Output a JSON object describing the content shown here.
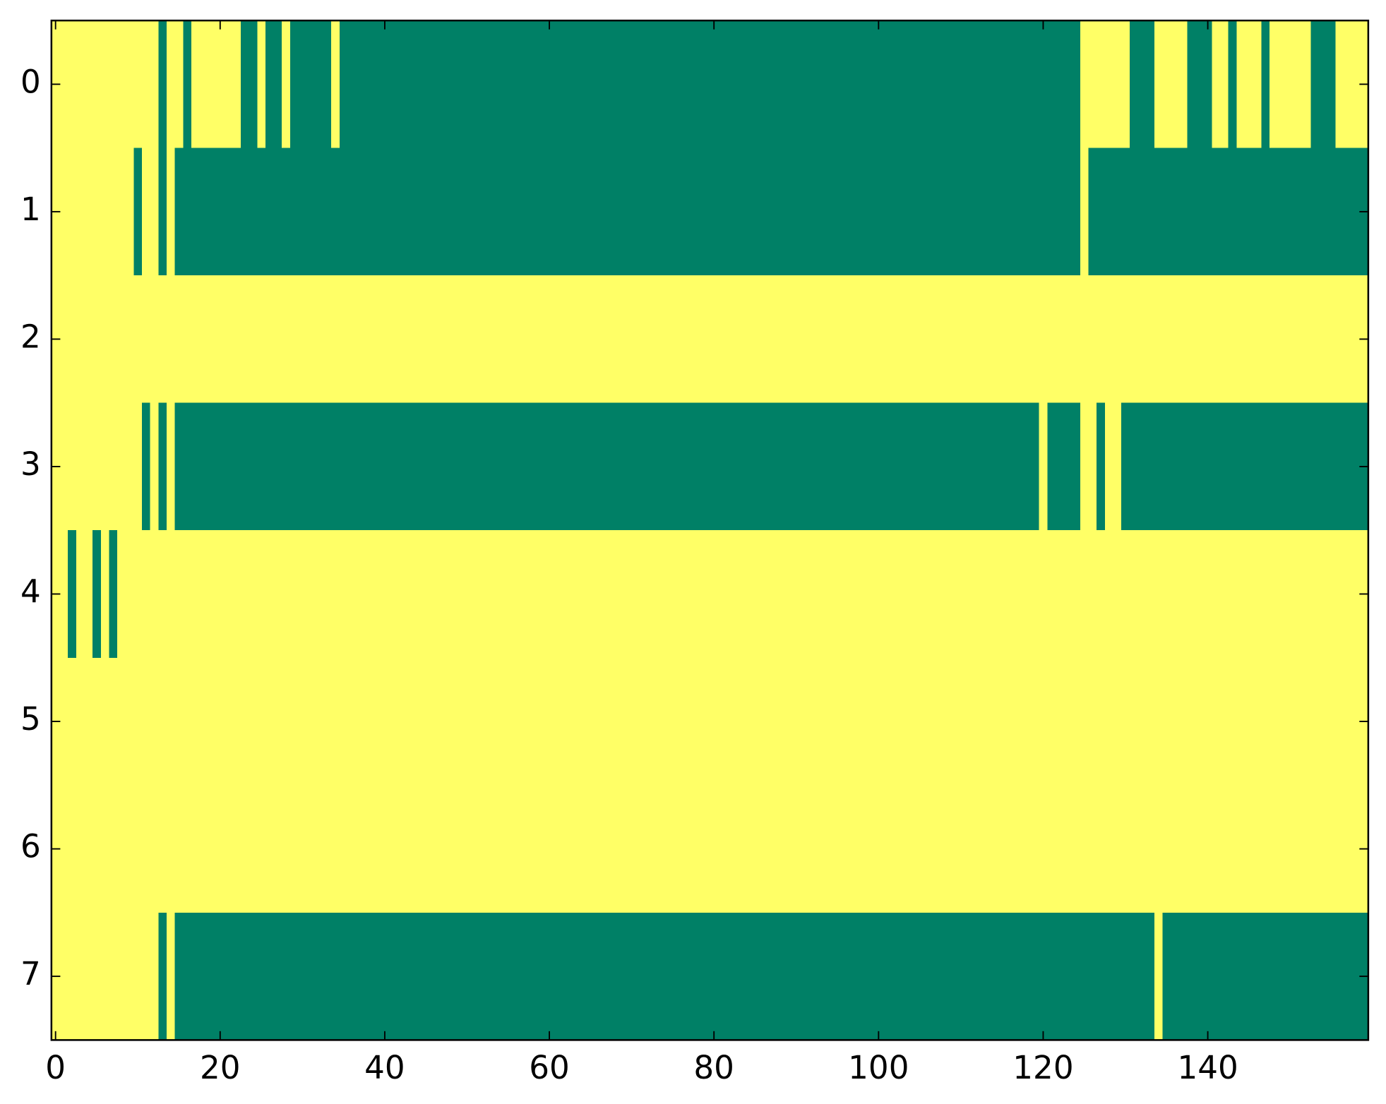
{
  "chart_data": {
    "type": "heatmap",
    "colors": [
      "#008066",
      "#ffff66"
    ],
    "xlim": [
      -0.5,
      159.5
    ],
    "ylim": [
      7.5,
      -0.5
    ],
    "xticks": [
      0,
      20,
      40,
      60,
      80,
      100,
      120,
      140
    ],
    "yticks": [
      0,
      1,
      2,
      3,
      4,
      5,
      6,
      7
    ],
    "values": [
      [
        1,
        1,
        1,
        1,
        1,
        1,
        1,
        1,
        1,
        1,
        1,
        1,
        1,
        0,
        1,
        1,
        0,
        1,
        1,
        1,
        1,
        1,
        1,
        0,
        0,
        1,
        0,
        0,
        1,
        0,
        0,
        0,
        0,
        0,
        1,
        0,
        0,
        0,
        0,
        0,
        0,
        0,
        0,
        0,
        0,
        0,
        0,
        0,
        0,
        0,
        0,
        0,
        0,
        0,
        0,
        0,
        0,
        0,
        0,
        0,
        0,
        0,
        0,
        0,
        0,
        0,
        0,
        0,
        0,
        0,
        0,
        0,
        0,
        0,
        0,
        0,
        0,
        0,
        0,
        0,
        0,
        0,
        0,
        0,
        0,
        0,
        0,
        0,
        0,
        0,
        0,
        0,
        0,
        0,
        0,
        0,
        0,
        0,
        0,
        0,
        0,
        0,
        0,
        0,
        0,
        0,
        0,
        0,
        0,
        0,
        0,
        0,
        0,
        0,
        0,
        0,
        0,
        0,
        0,
        0,
        0,
        0,
        0,
        0,
        0,
        1,
        1,
        1,
        1,
        1,
        1,
        0,
        0,
        0,
        1,
        1,
        1,
        1,
        0,
        0,
        0,
        1,
        1,
        0,
        1,
        1,
        1,
        0,
        1,
        1,
        1,
        1,
        1,
        0,
        0,
        0,
        1,
        1,
        1,
        1
      ],
      [
        1,
        1,
        1,
        1,
        1,
        1,
        1,
        1,
        1,
        1,
        0,
        1,
        1,
        0,
        1,
        0,
        0,
        0,
        0,
        0,
        0,
        0,
        0,
        0,
        0,
        0,
        0,
        0,
        0,
        0,
        0,
        0,
        0,
        0,
        0,
        0,
        0,
        0,
        0,
        0,
        0,
        0,
        0,
        0,
        0,
        0,
        0,
        0,
        0,
        0,
        0,
        0,
        0,
        0,
        0,
        0,
        0,
        0,
        0,
        0,
        0,
        0,
        0,
        0,
        0,
        0,
        0,
        0,
        0,
        0,
        0,
        0,
        0,
        0,
        0,
        0,
        0,
        0,
        0,
        0,
        0,
        0,
        0,
        0,
        0,
        0,
        0,
        0,
        0,
        0,
        0,
        0,
        0,
        0,
        0,
        0,
        0,
        0,
        0,
        0,
        0,
        0,
        0,
        0,
        0,
        0,
        0,
        0,
        0,
        0,
        0,
        0,
        0,
        0,
        0,
        0,
        0,
        0,
        0,
        0,
        0,
        0,
        0,
        0,
        0,
        1,
        0,
        0,
        0,
        0,
        0,
        0,
        0,
        0,
        0,
        0,
        0,
        0,
        0,
        0,
        0,
        0,
        0,
        0,
        0,
        0,
        0,
        0,
        0,
        0,
        0,
        0,
        0,
        0,
        0,
        0,
        0,
        0,
        0,
        0
      ],
      [
        1,
        1,
        1,
        1,
        1,
        1,
        1,
        1,
        1,
        1,
        1,
        1,
        1,
        1,
        1,
        1,
        1,
        1,
        1,
        1,
        1,
        1,
        1,
        1,
        1,
        1,
        1,
        1,
        1,
        1,
        1,
        1,
        1,
        1,
        1,
        1,
        1,
        1,
        1,
        1,
        1,
        1,
        1,
        1,
        1,
        1,
        1,
        1,
        1,
        1,
        1,
        1,
        1,
        1,
        1,
        1,
        1,
        1,
        1,
        1,
        1,
        1,
        1,
        1,
        1,
        1,
        1,
        1,
        1,
        1,
        1,
        1,
        1,
        1,
        1,
        1,
        1,
        1,
        1,
        1,
        1,
        1,
        1,
        1,
        1,
        1,
        1,
        1,
        1,
        1,
        1,
        1,
        1,
        1,
        1,
        1,
        1,
        1,
        1,
        1,
        1,
        1,
        1,
        1,
        1,
        1,
        1,
        1,
        1,
        1,
        1,
        1,
        1,
        1,
        1,
        1,
        1,
        1,
        1,
        1,
        1,
        1,
        1,
        1,
        1,
        1,
        1,
        1,
        1,
        1,
        1,
        1,
        1,
        1,
        1,
        1,
        1,
        1,
        1,
        1,
        1,
        1,
        1,
        1,
        1,
        1,
        1,
        1,
        1,
        1,
        1,
        1,
        1,
        1,
        1,
        1,
        1,
        1,
        1,
        1
      ],
      [
        1,
        1,
        1,
        1,
        1,
        1,
        1,
        1,
        1,
        1,
        1,
        0,
        1,
        0,
        1,
        0,
        0,
        0,
        0,
        0,
        0,
        0,
        0,
        0,
        0,
        0,
        0,
        0,
        0,
        0,
        0,
        0,
        0,
        0,
        0,
        0,
        0,
        0,
        0,
        0,
        0,
        0,
        0,
        0,
        0,
        0,
        0,
        0,
        0,
        0,
        0,
        0,
        0,
        0,
        0,
        0,
        0,
        0,
        0,
        0,
        0,
        0,
        0,
        0,
        0,
        0,
        0,
        0,
        0,
        0,
        0,
        0,
        0,
        0,
        0,
        0,
        0,
        0,
        0,
        0,
        0,
        0,
        0,
        0,
        0,
        0,
        0,
        0,
        0,
        0,
        0,
        0,
        0,
        0,
        0,
        0,
        0,
        0,
        0,
        0,
        0,
        0,
        0,
        0,
        0,
        0,
        0,
        0,
        0,
        0,
        0,
        0,
        0,
        0,
        0,
        0,
        0,
        0,
        0,
        0,
        1,
        0,
        0,
        0,
        0,
        1,
        1,
        0,
        1,
        1,
        0,
        0,
        0,
        0,
        0,
        0,
        0,
        0,
        0,
        0,
        0,
        0,
        0,
        0,
        0,
        0,
        0,
        0,
        0,
        0,
        0,
        0,
        0,
        0,
        0,
        0,
        0,
        0,
        0,
        0
      ],
      [
        1,
        1,
        0,
        1,
        1,
        0,
        1,
        0,
        1,
        1,
        1,
        1,
        1,
        1,
        1,
        1,
        1,
        1,
        1,
        1,
        1,
        1,
        1,
        1,
        1,
        1,
        1,
        1,
        1,
        1,
        1,
        1,
        1,
        1,
        1,
        1,
        1,
        1,
        1,
        1,
        1,
        1,
        1,
        1,
        1,
        1,
        1,
        1,
        1,
        1,
        1,
        1,
        1,
        1,
        1,
        1,
        1,
        1,
        1,
        1,
        1,
        1,
        1,
        1,
        1,
        1,
        1,
        1,
        1,
        1,
        1,
        1,
        1,
        1,
        1,
        1,
        1,
        1,
        1,
        1,
        1,
        1,
        1,
        1,
        1,
        1,
        1,
        1,
        1,
        1,
        1,
        1,
        1,
        1,
        1,
        1,
        1,
        1,
        1,
        1,
        1,
        1,
        1,
        1,
        1,
        1,
        1,
        1,
        1,
        1,
        1,
        1,
        1,
        1,
        1,
        1,
        1,
        1,
        1,
        1,
        1,
        1,
        1,
        1,
        1,
        1,
        1,
        1,
        1,
        1,
        1,
        1,
        1,
        1,
        1,
        1,
        1,
        1,
        1,
        1,
        1,
        1,
        1,
        1,
        1,
        1,
        1,
        1,
        1,
        1,
        1,
        1,
        1,
        1,
        1,
        1,
        1,
        1,
        1,
        1
      ],
      [
        1,
        1,
        1,
        1,
        1,
        1,
        1,
        1,
        1,
        1,
        1,
        1,
        1,
        1,
        1,
        1,
        1,
        1,
        1,
        1,
        1,
        1,
        1,
        1,
        1,
        1,
        1,
        1,
        1,
        1,
        1,
        1,
        1,
        1,
        1,
        1,
        1,
        1,
        1,
        1,
        1,
        1,
        1,
        1,
        1,
        1,
        1,
        1,
        1,
        1,
        1,
        1,
        1,
        1,
        1,
        1,
        1,
        1,
        1,
        1,
        1,
        1,
        1,
        1,
        1,
        1,
        1,
        1,
        1,
        1,
        1,
        1,
        1,
        1,
        1,
        1,
        1,
        1,
        1,
        1,
        1,
        1,
        1,
        1,
        1,
        1,
        1,
        1,
        1,
        1,
        1,
        1,
        1,
        1,
        1,
        1,
        1,
        1,
        1,
        1,
        1,
        1,
        1,
        1,
        1,
        1,
        1,
        1,
        1,
        1,
        1,
        1,
        1,
        1,
        1,
        1,
        1,
        1,
        1,
        1,
        1,
        1,
        1,
        1,
        1,
        1,
        1,
        1,
        1,
        1,
        1,
        1,
        1,
        1,
        1,
        1,
        1,
        1,
        1,
        1,
        1,
        1,
        1,
        1,
        1,
        1,
        1,
        1,
        1,
        1,
        1,
        1,
        1,
        1,
        1,
        1,
        1,
        1,
        1,
        1
      ],
      [
        1,
        1,
        1,
        1,
        1,
        1,
        1,
        1,
        1,
        1,
        1,
        1,
        1,
        1,
        1,
        1,
        1,
        1,
        1,
        1,
        1,
        1,
        1,
        1,
        1,
        1,
        1,
        1,
        1,
        1,
        1,
        1,
        1,
        1,
        1,
        1,
        1,
        1,
        1,
        1,
        1,
        1,
        1,
        1,
        1,
        1,
        1,
        1,
        1,
        1,
        1,
        1,
        1,
        1,
        1,
        1,
        1,
        1,
        1,
        1,
        1,
        1,
        1,
        1,
        1,
        1,
        1,
        1,
        1,
        1,
        1,
        1,
        1,
        1,
        1,
        1,
        1,
        1,
        1,
        1,
        1,
        1,
        1,
        1,
        1,
        1,
        1,
        1,
        1,
        1,
        1,
        1,
        1,
        1,
        1,
        1,
        1,
        1,
        1,
        1,
        1,
        1,
        1,
        1,
        1,
        1,
        1,
        1,
        1,
        1,
        1,
        1,
        1,
        1,
        1,
        1,
        1,
        1,
        1,
        1,
        1,
        1,
        1,
        1,
        1,
        1,
        1,
        1,
        1,
        1,
        1,
        1,
        1,
        1,
        1,
        1,
        1,
        1,
        1,
        1,
        1,
        1,
        1,
        1,
        1,
        1,
        1,
        1,
        1,
        1,
        1,
        1,
        1,
        1,
        1,
        1,
        1,
        1,
        1,
        1
      ],
      [
        1,
        1,
        1,
        1,
        1,
        1,
        1,
        1,
        1,
        1,
        1,
        1,
        1,
        0,
        1,
        0,
        0,
        0,
        0,
        0,
        0,
        0,
        0,
        0,
        0,
        0,
        0,
        0,
        0,
        0,
        0,
        0,
        0,
        0,
        0,
        0,
        0,
        0,
        0,
        0,
        0,
        0,
        0,
        0,
        0,
        0,
        0,
        0,
        0,
        0,
        0,
        0,
        0,
        0,
        0,
        0,
        0,
        0,
        0,
        0,
        0,
        0,
        0,
        0,
        0,
        0,
        0,
        0,
        0,
        0,
        0,
        0,
        0,
        0,
        0,
        0,
        0,
        0,
        0,
        0,
        0,
        0,
        0,
        0,
        0,
        0,
        0,
        0,
        0,
        0,
        0,
        0,
        0,
        0,
        0,
        0,
        0,
        0,
        0,
        0,
        0,
        0,
        0,
        0,
        0,
        0,
        0,
        0,
        0,
        0,
        0,
        0,
        0,
        0,
        0,
        0,
        0,
        0,
        0,
        0,
        0,
        0,
        0,
        0,
        0,
        0,
        0,
        0,
        0,
        0,
        0,
        0,
        0,
        0,
        1,
        0,
        0,
        0,
        0,
        0,
        0,
        0,
        0,
        0,
        0,
        0,
        0,
        0,
        0,
        0,
        0,
        0,
        0,
        0,
        0,
        0,
        0,
        0,
        0,
        0
      ]
    ]
  }
}
